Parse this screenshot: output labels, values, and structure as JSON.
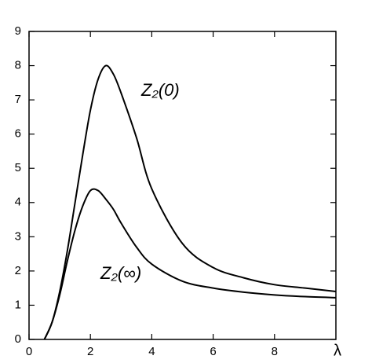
{
  "chart_data": {
    "type": "line",
    "x_label": "λ",
    "x": [
      0.5,
      0.75,
      1,
      1.25,
      1.5,
      1.75,
      2,
      2.25,
      2.5,
      2.75,
      3,
      3.5,
      4,
      5,
      6,
      7,
      8,
      9,
      10
    ],
    "series": [
      {
        "name": "Z₂(0)",
        "color": "#000000",
        "values": [
          0,
          0.5,
          1.4,
          2.6,
          4.0,
          5.4,
          6.7,
          7.6,
          8.0,
          7.75,
          7.2,
          5.9,
          4.4,
          2.8,
          2.1,
          1.8,
          1.6,
          1.5,
          1.4
        ]
      },
      {
        "name": "Z₂(∞)",
        "color": "#000000",
        "values": [
          0,
          0.5,
          1.3,
          2.3,
          3.2,
          3.9,
          4.35,
          4.35,
          4.1,
          3.8,
          3.4,
          2.7,
          2.2,
          1.7,
          1.5,
          1.38,
          1.3,
          1.25,
          1.22
        ]
      }
    ],
    "xlim": [
      0,
      10
    ],
    "xticks": [
      0,
      2,
      4,
      6,
      8
    ],
    "ylim": [
      0,
      9
    ],
    "yticks": [
      0,
      1,
      2,
      3,
      4,
      5,
      6,
      7,
      8,
      9
    ],
    "grid": false
  }
}
